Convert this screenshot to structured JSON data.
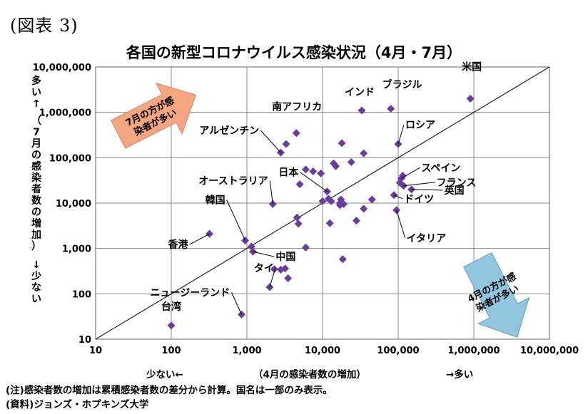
{
  "figure_label": "(図表 3)",
  "chart_data": {
    "type": "scatter",
    "title": "各国の新型コロナウイルス感染状況（4月・7月）",
    "xlabel": "（4月の感染者数の増加）",
    "x_low_label": "少ない←",
    "x_high_label": "→多い",
    "ylabel": "（7月の感染者数の増加）",
    "y_high_label": "多い↑",
    "y_low_label": "↓少ない",
    "xscale": "log",
    "yscale": "log",
    "xlim": [
      10,
      10000000
    ],
    "ylim": [
      10,
      10000000
    ],
    "grid": true,
    "x_ticks": [
      "10",
      "100",
      "1,000",
      "10,000",
      "100,000",
      "1,000,000",
      "10,000,000"
    ],
    "y_ticks": [
      "10",
      "100",
      "1,000",
      "10,000",
      "100,000",
      "1,000,000",
      "10,000,000"
    ],
    "diagonal": "y = x",
    "marker_color": "#6a3d9a",
    "points": [
      [
        100,
        20
      ],
      [
        320,
        2100
      ],
      [
        850,
        35
      ],
      [
        950,
        1500
      ],
      [
        1150,
        1100
      ],
      [
        1200,
        850
      ],
      [
        2200,
        9500
      ],
      [
        2300,
        350
      ],
      [
        2800,
        340
      ],
      [
        2800,
        130000
      ],
      [
        3200,
        360
      ],
      [
        3300,
        200000
      ],
      [
        3500,
        220
      ],
      [
        2000,
        140
      ],
      [
        4500,
        350000
      ],
      [
        4600,
        4800
      ],
      [
        4800,
        3500
      ],
      [
        5000,
        26000
      ],
      [
        6000,
        1050
      ],
      [
        6000,
        55000
      ],
      [
        7500,
        50000
      ],
      [
        9500,
        45000
      ],
      [
        10000,
        11000
      ],
      [
        11500,
        18000
      ],
      [
        12000,
        12500
      ],
      [
        12500,
        3600
      ],
      [
        13000,
        11000
      ],
      [
        14000,
        75000
      ],
      [
        15000,
        65000
      ],
      [
        17000,
        9000
      ],
      [
        17000,
        10000
      ],
      [
        17500,
        12000
      ],
      [
        18000,
        210000
      ],
      [
        18500,
        580
      ],
      [
        19000,
        9500
      ],
      [
        24000,
        80000
      ],
      [
        28000,
        4100
      ],
      [
        33000,
        1100000
      ],
      [
        35000,
        7500
      ],
      [
        35000,
        125000
      ],
      [
        45000,
        12000
      ],
      [
        80000,
        1200000
      ],
      [
        88000,
        15000
      ],
      [
        95000,
        7000
      ],
      [
        100000,
        200000
      ],
      [
        105000,
        28000
      ],
      [
        110000,
        35000
      ],
      [
        115000,
        40000
      ],
      [
        118000,
        24000
      ],
      [
        150000,
        20000
      ],
      [
        900000,
        2000000
      ]
    ],
    "annotations": [
      {
        "text": "米国",
        "x": 900000,
        "y": 2000000
      },
      {
        "text": "ブラジル",
        "x": 80000,
        "y": 1200000
      },
      {
        "text": "インド",
        "x": 33000,
        "y": 1100000
      },
      {
        "text": "南アフリカ",
        "x": 4500,
        "y": 350000
      },
      {
        "text": "ロシア",
        "x": 100000,
        "y": 200000
      },
      {
        "text": "アルゼンチン",
        "x": 2800,
        "y": 130000
      },
      {
        "text": "スペイン",
        "x": 110000,
        "y": 35000
      },
      {
        "text": "日本",
        "x": 11500,
        "y": 18000
      },
      {
        "text": "フランス",
        "x": 118000,
        "y": 24000
      },
      {
        "text": "オーストラリア",
        "x": 2200,
        "y": 9500
      },
      {
        "text": "英国",
        "x": 150000,
        "y": 20000
      },
      {
        "text": "ドイツ",
        "x": 88000,
        "y": 15000
      },
      {
        "text": "韓国",
        "x": 950,
        "y": 1500
      },
      {
        "text": "イタリア",
        "x": 95000,
        "y": 7000
      },
      {
        "text": "香港",
        "x": 320,
        "y": 2100
      },
      {
        "text": "中国",
        "x": 1200,
        "y": 850
      },
      {
        "text": "タイ",
        "x": 2000,
        "y": 140
      },
      {
        "text": "ニュージーランド",
        "x": 850,
        "y": 35
      },
      {
        "text": "台湾",
        "x": 100,
        "y": 20
      }
    ],
    "callouts": [
      {
        "lines": [
          "7月の方が感",
          "染者が多い"
        ],
        "color": "#f4a582",
        "direction": "up-right"
      },
      {
        "lines": [
          "4月の方が感",
          "染者が多い"
        ],
        "color": "#92c5de",
        "direction": "down-right"
      }
    ]
  },
  "notes": {
    "note1": "(注)感染者数の増加は累積感染者数の差分から計算。国名は一部のみ表示。",
    "note2": "(資料)ジョンズ・ホプキンズ大学"
  }
}
